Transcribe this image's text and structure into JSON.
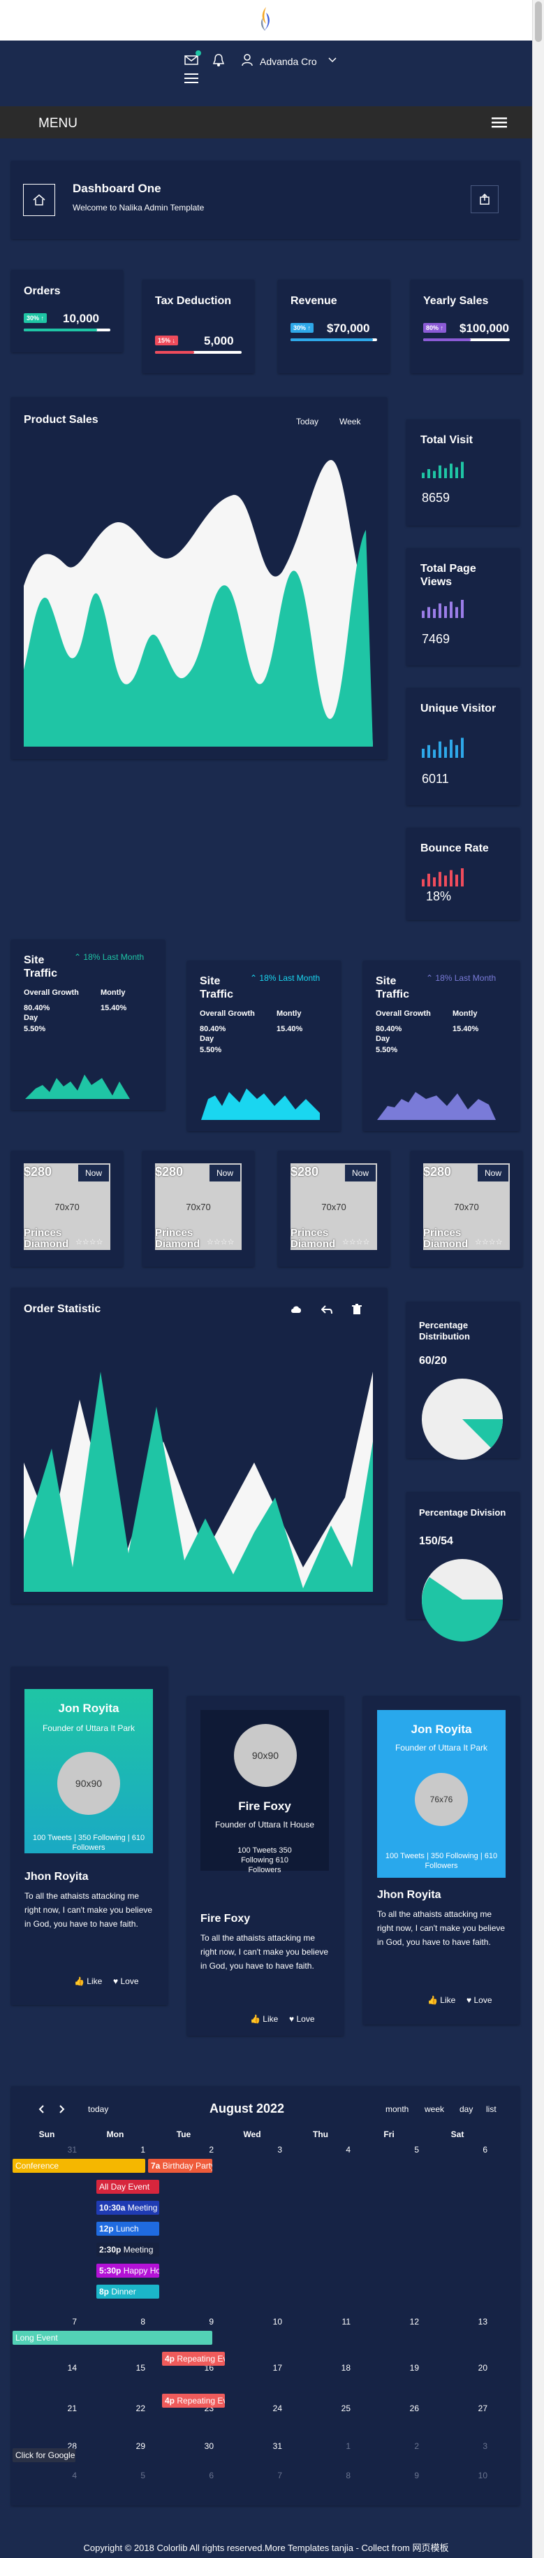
{
  "header": {
    "user_name": "Advanda Cro",
    "menu_label": "MENU"
  },
  "dashboard": {
    "title": "Dashboard One",
    "subtitle": "Welcome to Nalika Admin Template"
  },
  "stats": [
    {
      "label": "Orders",
      "badge": "30% ↑",
      "value": "10,000",
      "color": "#1fc5a5",
      "progress": 0.85
    },
    {
      "label": "Tax Deduction",
      "badge": "15% ↓",
      "value": "5,000",
      "color": "#ef4c5c",
      "progress": 0.45
    },
    {
      "label": "Revenue",
      "badge": "30% ↑",
      "value": "$70,000",
      "color": "#2ea8e9",
      "progress": 0.95
    },
    {
      "label": "Yearly Sales",
      "badge": "80% ↑",
      "value": "$100,000",
      "color": "#8b5bd6",
      "progress": 0.55
    }
  ],
  "product_sales": {
    "title": "Product Sales",
    "filters": [
      "Today",
      "Week"
    ]
  },
  "side_stats": [
    {
      "label": "Total Visit",
      "value": "8659",
      "color": "#1fc5a5"
    },
    {
      "label": "Total Page Views",
      "value": "7469",
      "color": "#9b7de8"
    },
    {
      "label": "Unique Visitor",
      "value": "6011",
      "color": "#2ea8e9"
    },
    {
      "label": "Bounce Rate",
      "value": "18%",
      "color": "#ef4c5c"
    }
  ],
  "traffic": [
    {
      "title": "Site Traffic",
      "trend": "18% Last Month",
      "growth_label": "Overall Growth",
      "growth_value": "80.40%",
      "monthly_label": "Montly",
      "monthly_value": "15.40%",
      "day_label": "Day",
      "day_value": "5.50%",
      "color": "#1fc5a5"
    },
    {
      "title": "Site Traffic",
      "trend": "18% Last Month",
      "growth_label": "Overall Growth",
      "growth_value": "80.40%",
      "monthly_label": "Montly",
      "monthly_value": "15.40%",
      "day_label": "Day",
      "day_value": "5.50%",
      "color": "#1ad6f0"
    },
    {
      "title": "Site Traffic",
      "trend": "18% Last Month",
      "growth_label": "Overall Growth",
      "growth_value": "80.40%",
      "monthly_label": "Montly",
      "monthly_value": "15.40%",
      "day_label": "Day",
      "day_value": "5.50%",
      "color": "#7a7bd8"
    }
  ],
  "products": [
    {
      "price": "$280",
      "button": "Now",
      "image": "70x70",
      "name": "Princes Diamond"
    },
    {
      "price": "$280",
      "button": "Now",
      "image": "70x70",
      "name": "Princes Diamond"
    },
    {
      "price": "$280",
      "button": "Now",
      "image": "70x70",
      "name": "Princes Diamond"
    },
    {
      "price": "$280",
      "button": "Now",
      "image": "70x70",
      "name": "Princes Diamond"
    }
  ],
  "order_statistic": {
    "title": "Order Statistic"
  },
  "pies": [
    {
      "title": "Percentage Distribution",
      "value": "60/20"
    },
    {
      "title": "Percentage Division",
      "value": "150/54"
    }
  ],
  "profiles": [
    {
      "name": "Jon Royita",
      "role": "Founder of Uttara It Park",
      "avatar": "90x90",
      "stats": "100 Tweets | 350 Following | 610 Followers",
      "title": "Jhon Royita",
      "text": "To all the athaists attacking me right now, I can't make you believe in God, you have to have faith.",
      "like": "Like",
      "love": "Love"
    },
    {
      "name": "Fire Foxy",
      "role": "Founder of Uttara It House",
      "avatar": "90x90",
      "stats": "100 Tweets   350 Following   610 Followers",
      "title": "Fire Foxy",
      "text": "To all the athaists attacking me right now, I can't make you believe in God, you have to have faith.",
      "like": "Like",
      "love": "Love"
    },
    {
      "name": "Jon Royita",
      "role": "Founder of Uttara It Park",
      "avatar": "76x76",
      "stats": "100 Tweets | 350 Following | 610 Followers",
      "title": "Jhon Royita",
      "text": "To all the athaists attacking me right now, I can't make you believe in God, you have to have faith.",
      "like": "Like",
      "love": "Love"
    }
  ],
  "calendar": {
    "title": "August 2022",
    "today": "today",
    "views": [
      "month",
      "week",
      "day",
      "list"
    ],
    "weekdays": [
      "Sun",
      "Mon",
      "Tue",
      "Wed",
      "Thu",
      "Fri",
      "Sat"
    ],
    "weeks": [
      [
        "31",
        "1",
        "2",
        "3",
        "4",
        "5",
        "6"
      ],
      [
        "7",
        "8",
        "9",
        "10",
        "11",
        "12",
        "13"
      ],
      [
        "14",
        "15",
        "16",
        "17",
        "18",
        "19",
        "20"
      ],
      [
        "21",
        "22",
        "23",
        "24",
        "25",
        "26",
        "27"
      ],
      [
        "28",
        "29",
        "30",
        "31",
        "1",
        "2",
        "3"
      ],
      [
        "4",
        "5",
        "6",
        "7",
        "8",
        "9",
        "10"
      ]
    ],
    "events": {
      "conference": "Conference",
      "birthday_time": "7a",
      "birthday": "Birthday Party",
      "all_day": "All Day Event",
      "meeting1_time": "10:30a",
      "meeting1": "Meeting",
      "lunch_time": "12p",
      "lunch": "Lunch",
      "meeting2_time": "2:30p",
      "meeting2": "Meeting",
      "happy_time": "5:30p",
      "happy": "Happy Hour",
      "dinner_time": "8p",
      "dinner": "Dinner",
      "long": "Long Event",
      "rep1_time": "4p",
      "rep1": "Repeating Event",
      "rep2_time": "4p",
      "rep2": "Repeating Event",
      "click": "Click for Google"
    }
  },
  "footer": {
    "text": "Copyright © 2018 Colorlib All rights reserved.More Templates tanjia - Collect from 网页模板"
  }
}
